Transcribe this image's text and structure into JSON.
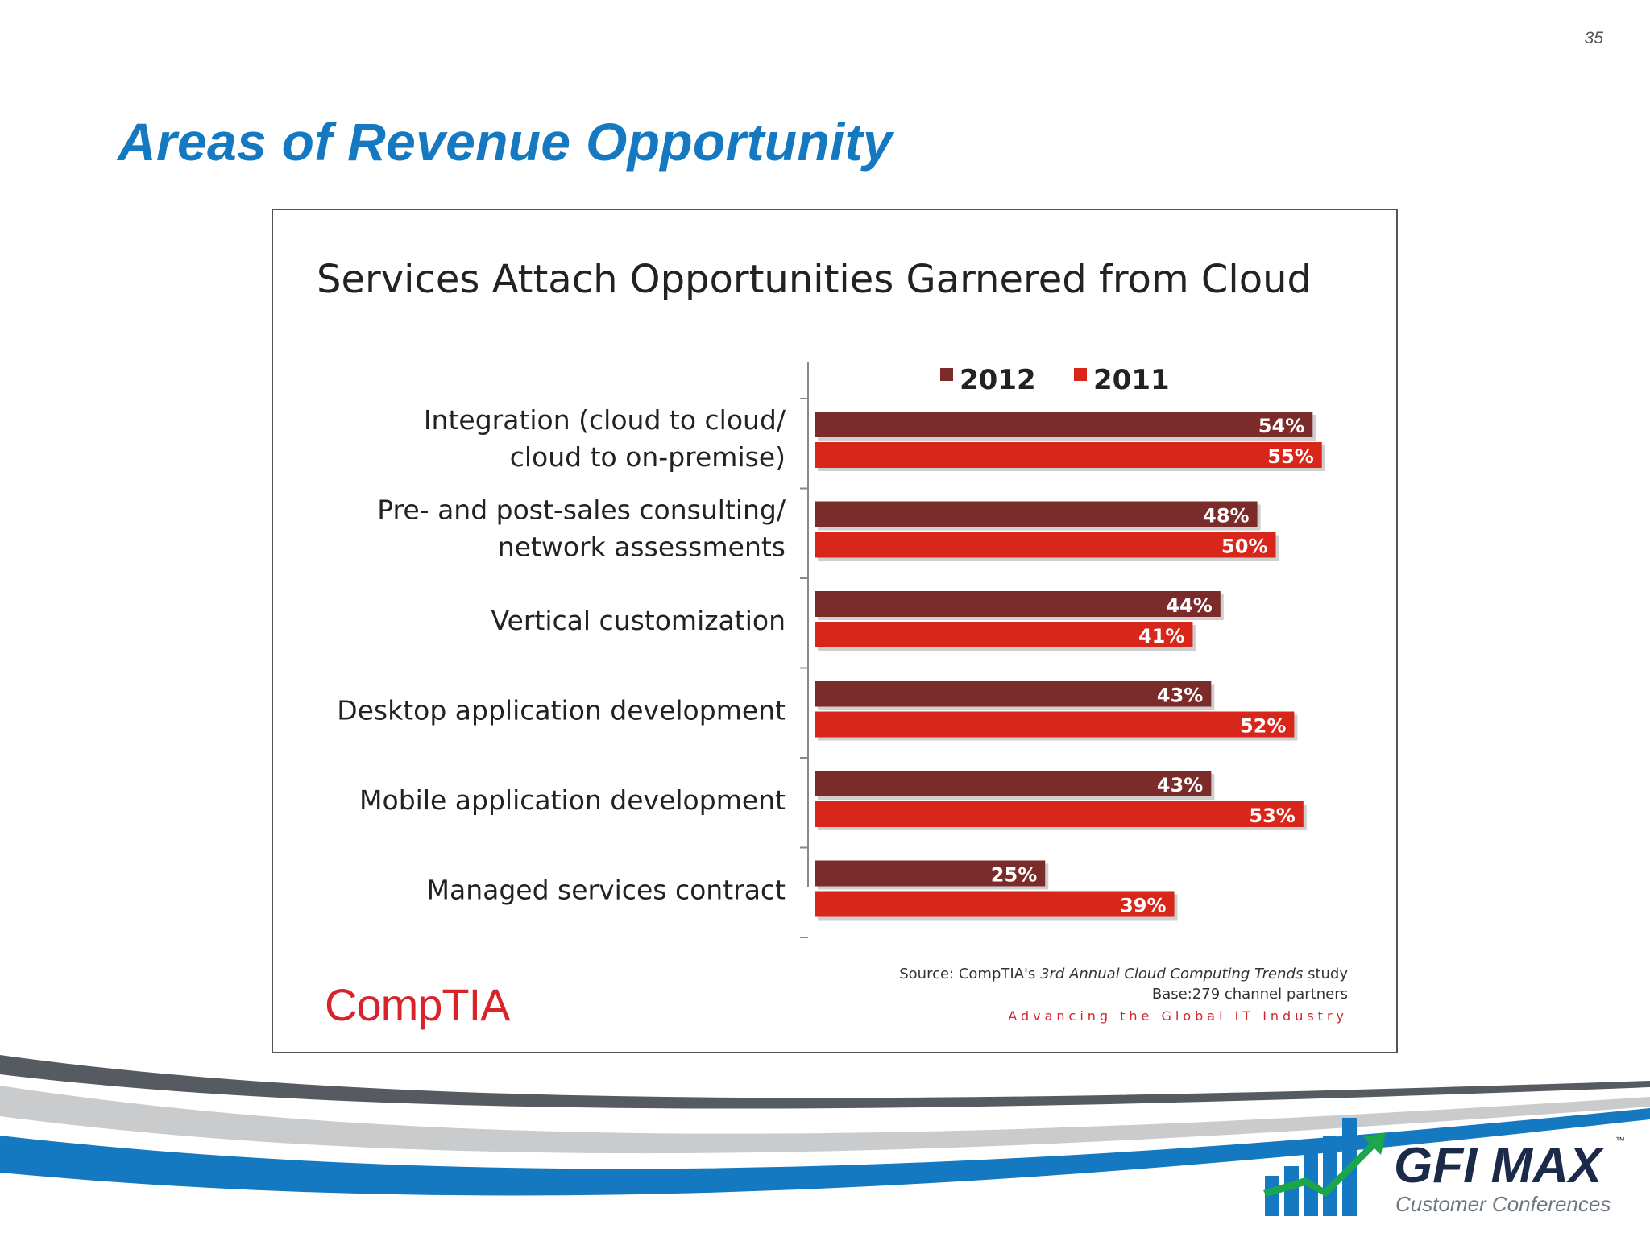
{
  "page": {
    "number": "35",
    "title": "Areas of Revenue Opportunity"
  },
  "colors": {
    "title_blue": "#1479c1",
    "series_2012": "#7b2b2a",
    "series_2011": "#d9261a",
    "comptia_red": "#d8232a"
  },
  "chart_data": {
    "type": "bar",
    "orientation": "horizontal",
    "title": "Services Attach Opportunities Garnered from Cloud",
    "categories": [
      [
        "Integration (cloud to cloud/",
        "cloud to on-premise)"
      ],
      [
        "Pre- and post-sales consulting/",
        "network assessments"
      ],
      [
        "Vertical customization"
      ],
      [
        "Desktop application development"
      ],
      [
        "Mobile application development"
      ],
      [
        "Managed services contract"
      ]
    ],
    "series": [
      {
        "name": "2012",
        "color": "#7b2b2a",
        "values": [
          54,
          48,
          44,
          43,
          43,
          25
        ],
        "labels": [
          "54%",
          "48%",
          "44%",
          "43%",
          "43%",
          "25%"
        ]
      },
      {
        "name": "2011",
        "color": "#d9261a",
        "values": [
          55,
          50,
          41,
          52,
          53,
          39
        ],
        "labels": [
          "55%",
          "50%",
          "41%",
          "52%",
          "53%",
          "39%"
        ]
      }
    ],
    "xlim": [
      0,
      100
    ],
    "grid": false,
    "legend_position": "top"
  },
  "source": {
    "line1_prefix": "Source: CompTIA's ",
    "line1_italic": "3rd Annual Cloud Computing Trends",
    "line1_suffix": " study",
    "line2": "Base:279 channel partners",
    "tagline": "Advancing the Global IT Industry",
    "logo_text": "CompTIA"
  },
  "brand": {
    "name": "GFI MAX",
    "tm": "™",
    "tagline": "Customer Conferences"
  }
}
